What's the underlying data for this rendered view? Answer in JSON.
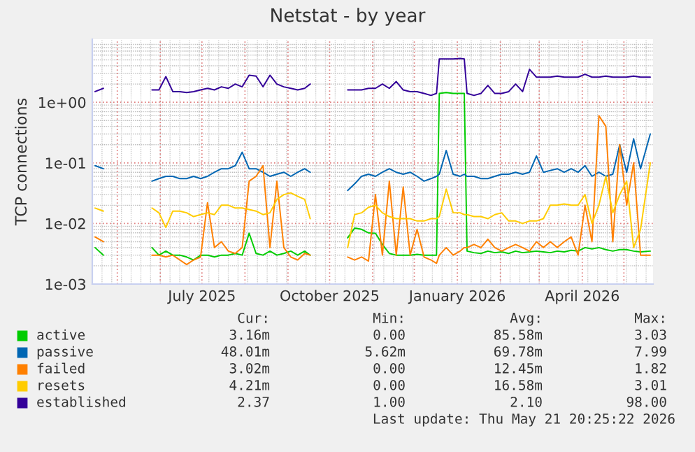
{
  "chart_data": {
    "type": "line",
    "title": "Netstat - by year",
    "ylabel": "TCP connections",
    "log": "y",
    "grid": true,
    "legend": "bottom",
    "xlim": [
      "2025-04-13",
      "2026-05-22"
    ],
    "ylim": [
      0.001,
      11
    ],
    "yticks": [
      {
        "value": 0.001,
        "label": "1e-03"
      },
      {
        "value": 0.01,
        "label": "1e-02"
      },
      {
        "value": 0.1,
        "label": "1e-01"
      },
      {
        "value": 1,
        "label": "1e+00"
      }
    ],
    "xticks": [
      {
        "value": "2025-07-01",
        "label": "July 2025"
      },
      {
        "value": "2025-10-01",
        "label": "October 2025"
      },
      {
        "value": "2026-01-01",
        "label": "January 2026"
      },
      {
        "value": "2026-04-01",
        "label": "April 2026"
      }
    ],
    "x": [
      "2025-04-15",
      "2025-04-21",
      "2025-05-01",
      "2025-05-26",
      "2025-05-31",
      "2025-06-05",
      "2025-06-10",
      "2025-06-15",
      "2025-06-20",
      "2025-06-25",
      "2025-06-30",
      "2025-07-05",
      "2025-07-10",
      "2025-07-15",
      "2025-07-20",
      "2025-07-25",
      "2025-07-30",
      "2025-08-04",
      "2025-08-09",
      "2025-08-14",
      "2025-08-19",
      "2025-08-24",
      "2025-08-29",
      "2025-09-03",
      "2025-09-08",
      "2025-09-13",
      "2025-09-17",
      "2025-09-30",
      "2025-10-14",
      "2025-10-19",
      "2025-10-24",
      "2025-10-29",
      "2025-11-03",
      "2025-11-08",
      "2025-11-13",
      "2025-11-18",
      "2025-11-23",
      "2025-11-28",
      "2025-12-03",
      "2025-12-08",
      "2025-12-13",
      "2025-12-17",
      "2025-12-19",
      "2025-12-24",
      "2025-12-29",
      "2026-01-03",
      "2026-01-06",
      "2026-01-08",
      "2026-01-13",
      "2026-01-18",
      "2026-01-23",
      "2026-01-28",
      "2026-02-02",
      "2026-02-07",
      "2026-02-12",
      "2026-02-17",
      "2026-02-22",
      "2026-02-27",
      "2026-03-04",
      "2026-03-09",
      "2026-03-14",
      "2026-03-19",
      "2026-03-24",
      "2026-03-29",
      "2026-04-03",
      "2026-04-08",
      "2026-04-13",
      "2026-04-18",
      "2026-04-23",
      "2026-04-28",
      "2026-05-03",
      "2026-05-08",
      "2026-05-13",
      "2026-05-20"
    ],
    "series": [
      {
        "name": "active",
        "color": "#00cc00",
        "values": [
          0.004,
          0.003,
          null,
          0.004,
          0.003,
          0.0035,
          0.003,
          0.003,
          0.0028,
          0.0025,
          0.003,
          0.003,
          0.0028,
          0.003,
          0.003,
          0.0032,
          0.003,
          0.0069,
          0.0032,
          0.003,
          0.0035,
          0.003,
          0.0032,
          0.0035,
          0.003,
          0.0035,
          0.003,
          null,
          0.0058,
          0.0084,
          0.008,
          0.007,
          0.0069,
          0.0045,
          0.0032,
          0.003,
          0.003,
          0.003,
          0.0031,
          0.003,
          0.003,
          0.003,
          1.4,
          1.45,
          1.4,
          1.4,
          1.4,
          0.0035,
          0.0033,
          0.0032,
          0.0035,
          0.0033,
          0.0034,
          0.0032,
          0.0035,
          0.0033,
          0.0034,
          0.0035,
          0.0034,
          0.0033,
          0.0035,
          0.0034,
          0.0036,
          0.0035,
          0.004,
          0.0038,
          0.004,
          0.0037,
          0.0035,
          0.0037,
          0.0037,
          0.0035,
          0.0034,
          0.0035
        ]
      },
      {
        "name": "passive",
        "color": "#0066b3",
        "values": [
          0.09,
          0.08,
          null,
          0.05,
          0.055,
          0.06,
          0.06,
          0.055,
          0.055,
          0.06,
          0.055,
          0.06,
          0.07,
          0.08,
          0.08,
          0.09,
          0.15,
          0.08,
          0.08,
          0.07,
          0.06,
          0.065,
          0.07,
          0.06,
          0.07,
          0.08,
          0.07,
          null,
          0.035,
          0.045,
          0.06,
          0.065,
          0.06,
          0.07,
          0.08,
          0.07,
          0.065,
          0.07,
          0.06,
          0.05,
          0.055,
          0.06,
          0.065,
          0.16,
          0.065,
          0.06,
          0.065,
          0.06,
          0.06,
          0.055,
          0.055,
          0.06,
          0.065,
          0.065,
          0.07,
          0.065,
          0.07,
          0.13,
          0.07,
          0.075,
          0.08,
          0.07,
          0.08,
          0.07,
          0.09,
          0.06,
          0.07,
          0.06,
          0.065,
          0.2,
          0.07,
          0.25,
          0.08,
          0.3
        ]
      },
      {
        "name": "failed",
        "color": "#ff8000",
        "values": [
          0.006,
          0.005,
          null,
          0.003,
          0.003,
          0.0028,
          0.003,
          0.0025,
          0.0021,
          0.0025,
          0.0028,
          0.022,
          0.004,
          0.005,
          0.0035,
          0.0032,
          0.004,
          0.05,
          0.06,
          0.09,
          0.004,
          0.05,
          0.004,
          0.0028,
          0.0025,
          0.0032,
          0.003,
          null,
          0.0028,
          0.0025,
          0.0028,
          0.0024,
          0.03,
          0.003,
          0.05,
          0.003,
          0.04,
          0.003,
          0.008,
          0.0028,
          0.0025,
          0.0022,
          0.003,
          0.004,
          0.003,
          0.0035,
          0.004,
          0.004,
          0.0045,
          0.004,
          0.0055,
          0.004,
          0.0035,
          0.004,
          0.0045,
          0.004,
          0.0035,
          0.005,
          0.004,
          0.005,
          0.004,
          0.005,
          0.006,
          0.003,
          0.02,
          0.005,
          0.6,
          0.4,
          0.005,
          0.2,
          0.02,
          0.1,
          0.003,
          0.003
        ]
      },
      {
        "name": "resets",
        "color": "#ffcc00",
        "values": [
          0.018,
          0.016,
          null,
          0.018,
          0.015,
          0.0086,
          0.016,
          0.016,
          0.015,
          0.013,
          0.014,
          0.015,
          0.014,
          0.02,
          0.02,
          0.018,
          0.018,
          0.017,
          0.016,
          0.014,
          0.015,
          0.025,
          0.03,
          0.032,
          0.028,
          0.025,
          0.012,
          null,
          0.004,
          0.014,
          0.015,
          0.0185,
          0.02,
          0.015,
          0.013,
          0.012,
          0.012,
          0.012,
          0.011,
          0.011,
          0.012,
          0.012,
          0.013,
          0.037,
          0.015,
          0.015,
          0.014,
          0.014,
          0.013,
          0.013,
          0.012,
          0.014,
          0.015,
          0.011,
          0.011,
          0.01,
          0.011,
          0.011,
          0.012,
          0.02,
          0.02,
          0.021,
          0.02,
          0.02,
          0.03,
          0.01,
          0.02,
          0.06,
          0.015,
          0.03,
          0.05,
          0.004,
          0.008,
          0.1
        ]
      },
      {
        "name": "established",
        "color": "#330099",
        "values": [
          1.5,
          1.7,
          null,
          1.6,
          1.6,
          2.65,
          1.5,
          1.5,
          1.45,
          1.5,
          1.6,
          1.7,
          1.6,
          1.8,
          1.7,
          2.0,
          1.8,
          2.8,
          2.7,
          1.8,
          2.8,
          2.0,
          1.8,
          1.7,
          1.6,
          1.7,
          2.0,
          null,
          1.6,
          1.6,
          1.6,
          1.7,
          1.7,
          2.0,
          1.7,
          2.2,
          1.6,
          1.5,
          1.5,
          1.4,
          1.3,
          1.4,
          5.2,
          5.2,
          5.2,
          5.3,
          5.2,
          1.4,
          1.3,
          1.4,
          1.9,
          1.4,
          1.4,
          1.5,
          2.0,
          1.5,
          3.5,
          2.6,
          2.6,
          2.6,
          2.7,
          2.6,
          2.6,
          2.6,
          2.9,
          2.6,
          2.6,
          2.7,
          2.6,
          2.6,
          2.6,
          2.7,
          2.6,
          2.6
        ]
      }
    ],
    "annotations": [
      "Cur:",
      "Min:",
      "Avg:",
      "Max:",
      "3.16m",
      "0.00",
      "85.58m",
      "3.03",
      "48.01m",
      "5.62m",
      "69.78m",
      "7.99",
      "3.02m",
      "0.00",
      "12.45m",
      "1.82",
      "4.21m",
      "0.00",
      "16.58m",
      "3.01",
      "2.37",
      "1.00",
      "2.10",
      "98.00",
      "Last update: Thu May 21 20:25:22 2026"
    ]
  }
}
